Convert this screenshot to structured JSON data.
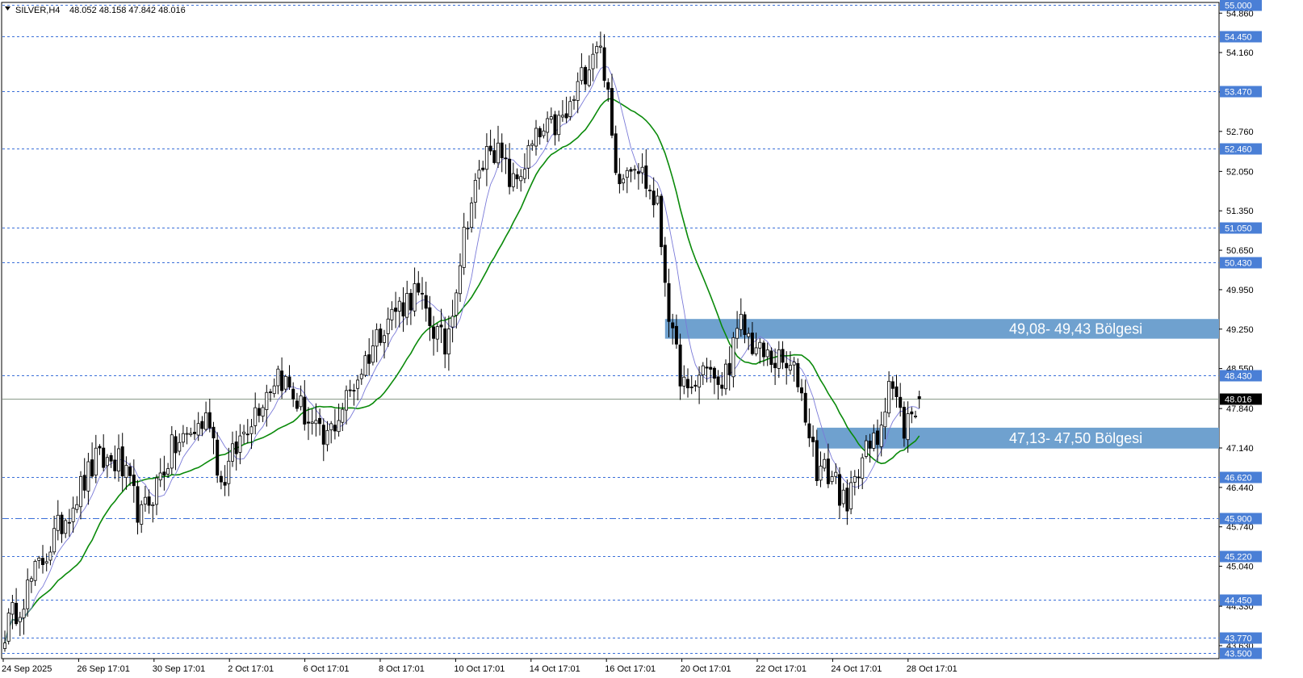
{
  "header": {
    "menu_icon": "triangle-down-icon",
    "symbol": "SILVER,H4",
    "ohlc": "48.052 48.158 47.842 48.016"
  },
  "chart_data": {
    "type": "candlestick",
    "symbol": "SILVER",
    "timeframe": "H4",
    "ylim": [
      43.4,
      55.05
    ],
    "price_ticks": [
      "54.860",
      "54.160",
      "53.460",
      "52.760",
      "52.050",
      "51.350",
      "50.650",
      "49.950",
      "49.250",
      "48.550",
      "47.840",
      "47.140",
      "46.440",
      "45.740",
      "45.040",
      "44.330",
      "43.630"
    ],
    "time_labels": [
      "24 Sep 2025",
      "26 Sep 17:01",
      "30 Sep 17:01",
      "2 Oct 17:01",
      "6 Oct 17:01",
      "8 Oct 17:01",
      "10 Oct 17:01",
      "14 Oct 17:01",
      "16 Oct 17:01",
      "20 Oct 17:01",
      "22 Oct 17:01",
      "24 Oct 17:01",
      "28 Oct 17:01"
    ],
    "horizontal_levels": [
      {
        "value": "55.000",
        "style": "dashed"
      },
      {
        "value": "54.450",
        "style": "dashed"
      },
      {
        "value": "53.470",
        "style": "dashed"
      },
      {
        "value": "52.460",
        "style": "dashed"
      },
      {
        "value": "51.050",
        "style": "dashed"
      },
      {
        "value": "50.430",
        "style": "dashed"
      },
      {
        "value": "48.430",
        "style": "dashed"
      },
      {
        "value": "46.620",
        "style": "dashed"
      },
      {
        "value": "45.900",
        "style": "dashdot"
      },
      {
        "value": "45.220",
        "style": "dashed"
      },
      {
        "value": "44.450",
        "style": "dashed"
      },
      {
        "value": "43.770",
        "style": "dashed"
      },
      {
        "value": "43.500",
        "style": "dashed"
      }
    ],
    "current_price": "48.016",
    "zones": [
      {
        "label": "49,08- 49,43 Bölgesi",
        "low": 49.08,
        "high": 49.43,
        "start_bar": 174
      },
      {
        "label": "47,13- 47,50 Bölgesi",
        "low": 47.13,
        "high": 47.5,
        "start_bar": 214
      }
    ],
    "waypoints": [
      [
        0,
        43.9
      ],
      [
        8,
        44.9
      ],
      [
        18,
        46.2
      ],
      [
        24,
        46.9
      ],
      [
        30,
        46.9
      ],
      [
        36,
        45.9
      ],
      [
        44,
        47.1
      ],
      [
        54,
        47.7
      ],
      [
        57,
        46.5
      ],
      [
        64,
        47.6
      ],
      [
        72,
        48.5
      ],
      [
        84,
        47.2
      ],
      [
        90,
        48.0
      ],
      [
        100,
        49.4
      ],
      [
        108,
        49.9
      ],
      [
        116,
        48.9
      ],
      [
        122,
        51.3
      ],
      [
        128,
        52.6
      ],
      [
        134,
        51.8
      ],
      [
        140,
        52.6
      ],
      [
        148,
        53.0
      ],
      [
        156,
        54.4
      ],
      [
        158,
        53.9
      ],
      [
        161,
        52.0
      ],
      [
        166,
        52.3
      ],
      [
        172,
        51.4
      ],
      [
        176,
        49.0
      ],
      [
        180,
        48.0
      ],
      [
        185,
        48.7
      ],
      [
        188,
        48.1
      ],
      [
        194,
        49.3
      ],
      [
        199,
        48.8
      ],
      [
        203,
        48.7
      ],
      [
        209,
        48.4
      ],
      [
        214,
        46.8
      ],
      [
        219,
        46.6
      ],
      [
        222,
        45.9
      ],
      [
        224,
        46.8
      ],
      [
        230,
        47.3
      ],
      [
        233,
        48.4
      ],
      [
        237,
        47.5
      ],
      [
        241,
        48.02
      ]
    ],
    "total_bars": 242,
    "moving_averages": [
      {
        "period": 21,
        "color": "#0a8a0a",
        "line": "solid"
      },
      {
        "period": 8,
        "color": "#7a7ad8",
        "line": "thin"
      }
    ]
  },
  "colors": {
    "zone": "#6fa1cf",
    "level_line": "#3a6fd8",
    "level_label_bg": "#4a7fd6",
    "bull_candle": "#ffffff",
    "bear_candle": "#000000",
    "price_label_bg": "#000000",
    "axis_line": "#000000"
  }
}
